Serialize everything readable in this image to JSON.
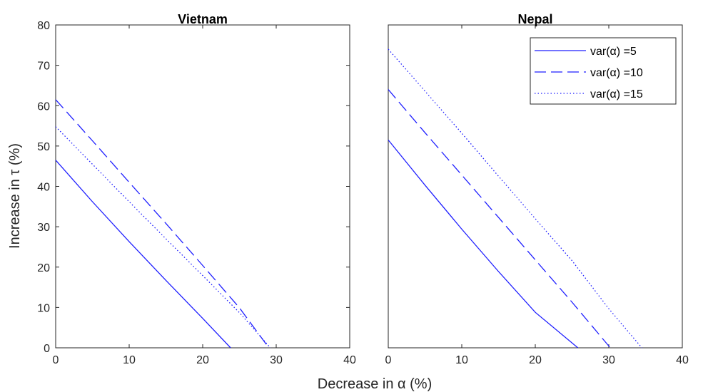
{
  "chart_data": [
    {
      "type": "line",
      "title": "Vietnam",
      "xlabel": "Decrease in α (%)",
      "ylabel": "Increase in τ (%)",
      "xlim": [
        0,
        40
      ],
      "ylim": [
        0,
        80
      ],
      "xticks": [
        0,
        10,
        20,
        30,
        40
      ],
      "yticks": [
        0,
        10,
        20,
        30,
        40,
        50,
        60,
        70,
        80
      ],
      "grid": false,
      "series": [
        {
          "name": "var(α) =5",
          "style": "solid",
          "color": "#1f1fff",
          "x": [
            0,
            5,
            10,
            15,
            20,
            23.8
          ],
          "y": [
            46.5,
            36.2,
            26.3,
            16.7,
            7.3,
            0
          ]
        },
        {
          "name": "var(α) =10",
          "style": "dashed",
          "color": "#1f1fff",
          "x": [
            0,
            5,
            10,
            15,
            20,
            25,
            29.0
          ],
          "y": [
            61.5,
            51.3,
            41.0,
            30.8,
            20.4,
            9.9,
            0
          ]
        },
        {
          "name": "var(α) =15",
          "style": "dotted",
          "color": "#1f1fff",
          "x": [
            0,
            5,
            10,
            15,
            20,
            25,
            29.2
          ],
          "y": [
            54.8,
            45.5,
            36.2,
            27.0,
            17.9,
            8.7,
            0
          ]
        }
      ]
    },
    {
      "type": "line",
      "title": "Nepal",
      "xlim": [
        0,
        40
      ],
      "ylim": [
        0,
        80
      ],
      "xticks": [
        0,
        10,
        20,
        30,
        40
      ],
      "grid": false,
      "legend": "top-right",
      "series": [
        {
          "name": "var(α) =5",
          "style": "solid",
          "color": "#1f1fff",
          "x": [
            0,
            5,
            10,
            15,
            20,
            25.8
          ],
          "y": [
            51.5,
            40.3,
            29.4,
            18.9,
            8.8,
            0
          ]
        },
        {
          "name": "var(α) =10",
          "style": "dashed",
          "color": "#1f1fff",
          "x": [
            0,
            5,
            10,
            15,
            20,
            25,
            30.2
          ],
          "y": [
            64.0,
            53.3,
            42.8,
            32.3,
            21.8,
            11.3,
            0
          ]
        },
        {
          "name": "var(α) =15",
          "style": "dotted",
          "color": "#1f1fff",
          "x": [
            0,
            5,
            10,
            15,
            20,
            25,
            30,
            34.5
          ],
          "y": [
            74.0,
            63.6,
            53.2,
            42.5,
            32.0,
            21.6,
            9.7,
            0
          ]
        }
      ]
    }
  ]
}
